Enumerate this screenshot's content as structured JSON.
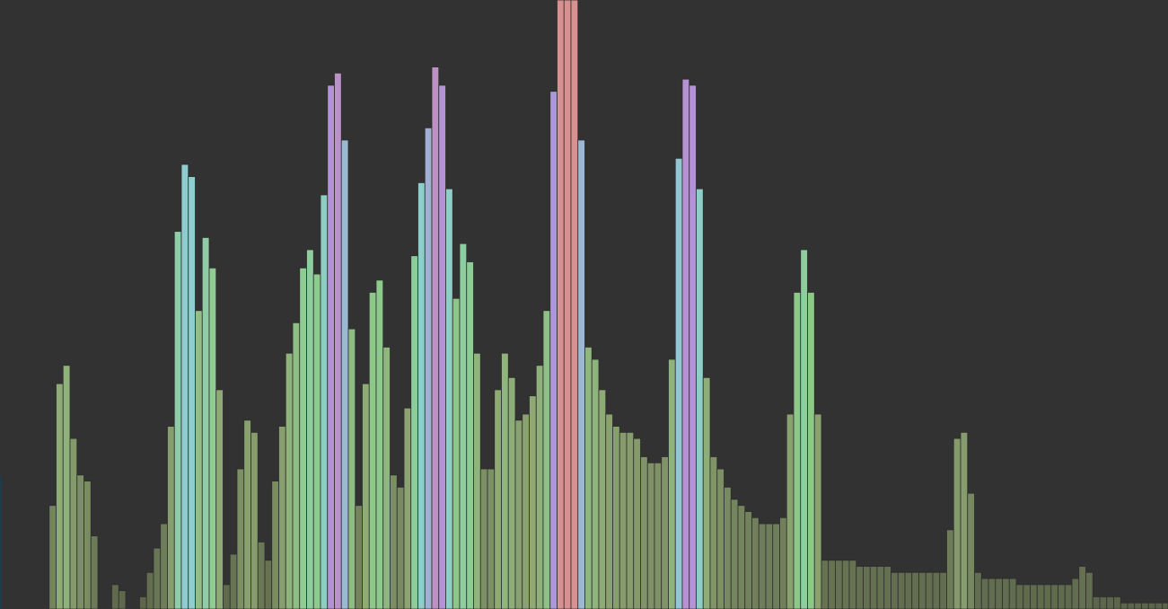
{
  "chart_data": {
    "type": "bar",
    "title": "",
    "xlabel": "",
    "ylabel": "",
    "ylim": [
      0,
      1
    ],
    "grid": false,
    "legend": "none",
    "background": "#323232",
    "bar_edge_color": "#2e2e2e",
    "color_scale": {
      "low": "#5a6248",
      "mid_low": "#8fa874",
      "mid": "#8ecc8e",
      "mid_high": "#8dcfd2",
      "high": "#b392d6",
      "peak": "#d99090"
    },
    "values": [
      0,
      0.17,
      0.37,
      0.4,
      0.28,
      0.22,
      0.21,
      0.12,
      0,
      0,
      0.04,
      0.03,
      0,
      0,
      0.02,
      0.06,
      0.1,
      0.14,
      0.3,
      0.62,
      0.73,
      0.71,
      0.49,
      0.61,
      0.56,
      0.36,
      0.04,
      0.09,
      0.23,
      0.31,
      0.29,
      0.11,
      0.08,
      0.21,
      0.3,
      0.42,
      0.47,
      0.56,
      0.59,
      0.55,
      0.68,
      0.86,
      0.88,
      0.77,
      0.46,
      0.17,
      0.37,
      0.52,
      0.54,
      0.43,
      0.22,
      0.2,
      0.33,
      0.58,
      0.7,
      0.79,
      0.89,
      0.86,
      0.69,
      0.51,
      0.6,
      0.57,
      0.42,
      0.23,
      0.23,
      0.36,
      0.42,
      0.38,
      0.31,
      0.32,
      0.35,
      0.4,
      0.49,
      0.85,
      1.0,
      1.0,
      1.0,
      0.77,
      0.43,
      0.41,
      0.36,
      0.32,
      0.3,
      0.29,
      0.29,
      0.28,
      0.25,
      0.24,
      0.24,
      0.25,
      0.41,
      0.74,
      0.87,
      0.86,
      0.69,
      0.38,
      0.25,
      0.23,
      0.2,
      0.18,
      0.17,
      0.16,
      0.15,
      0.14,
      0.14,
      0.14,
      0.15,
      0.32,
      0.52,
      0.59,
      0.52,
      0.32,
      0.08,
      0.08,
      0.08,
      0.08,
      0.08,
      0.07,
      0.07,
      0.07,
      0.07,
      0.07,
      0.06,
      0.06,
      0.06,
      0.06,
      0.06,
      0.06,
      0.06,
      0.06,
      0.13,
      0.28,
      0.29,
      0.19,
      0.06,
      0.05,
      0.05,
      0.05,
      0.05,
      0.05,
      0.04,
      0.04,
      0.04,
      0.04,
      0.04,
      0.04,
      0.04,
      0.04,
      0.05,
      0.07,
      0.06,
      0.02,
      0.02,
      0.02,
      0.02,
      0.01,
      0.01,
      0.01,
      0.01,
      0.01,
      0.01,
      0.01,
      0.01,
      0.01,
      0.01,
      0.01
    ]
  }
}
